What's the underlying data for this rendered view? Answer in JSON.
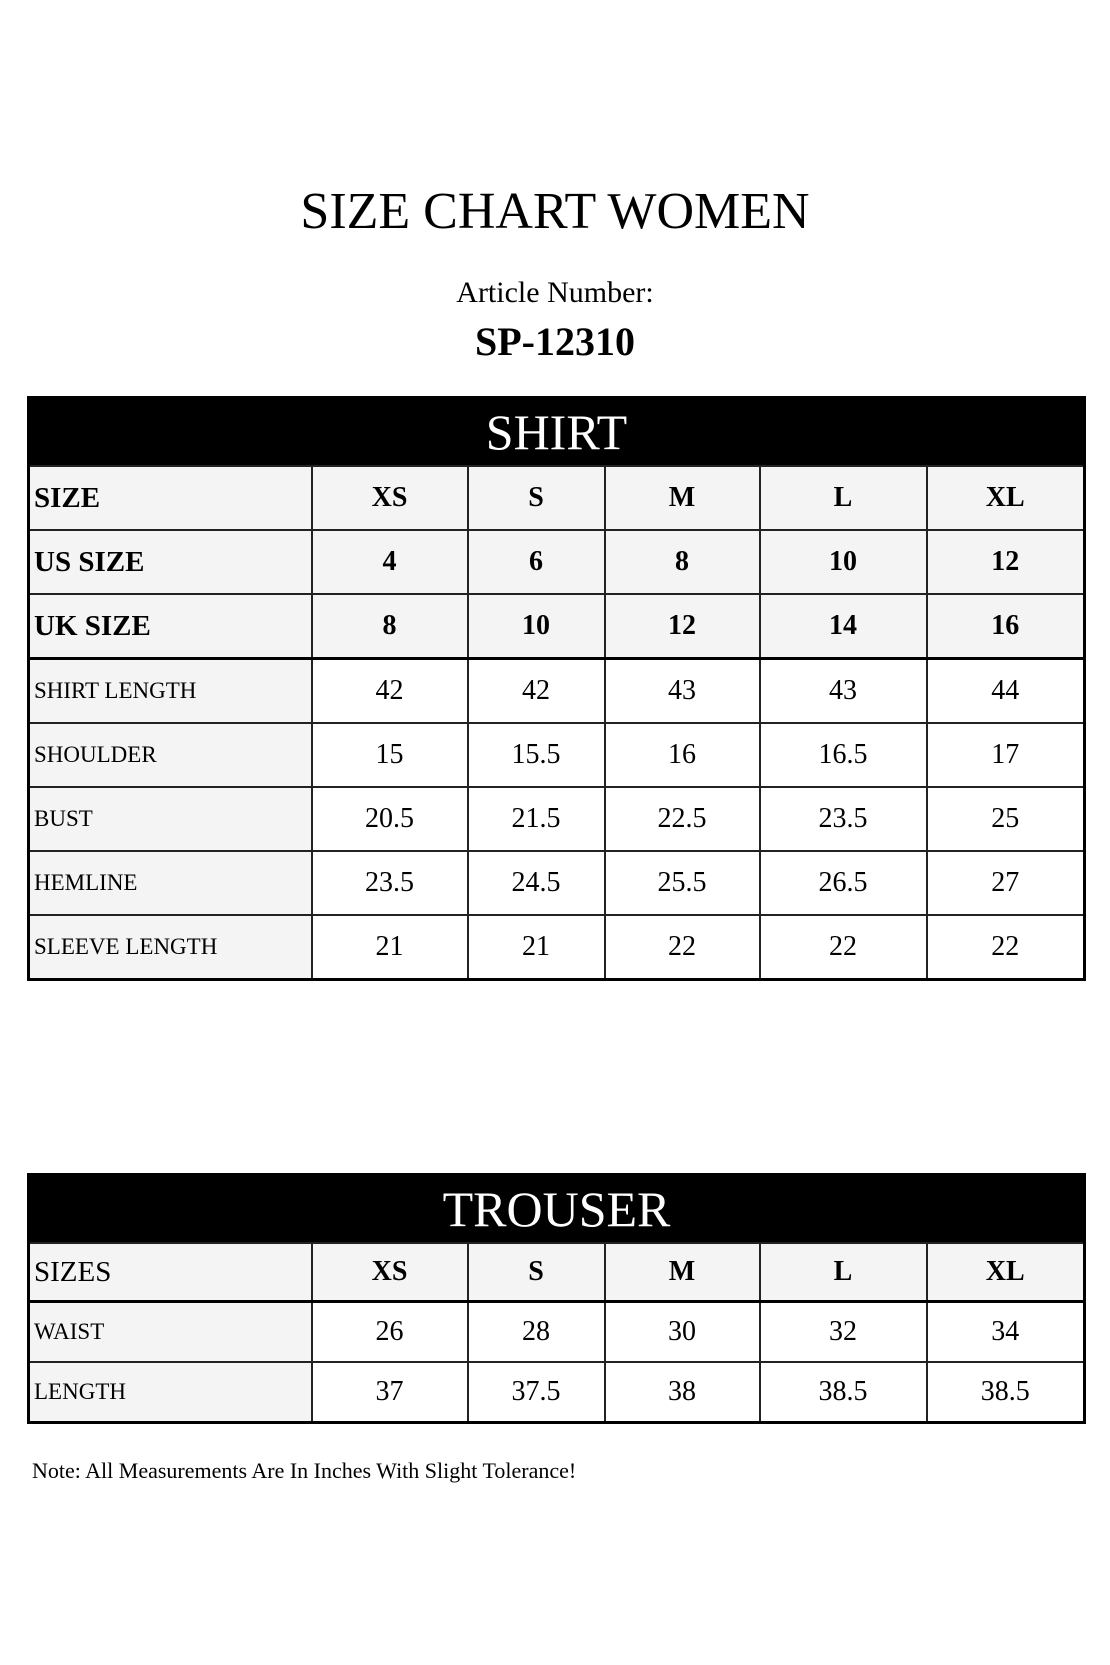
{
  "title": "SIZE CHART WOMEN",
  "article_label": "Article Number:",
  "article_number": "SP-12310",
  "shirt": {
    "heading": "SHIRT",
    "size_rows": [
      {
        "label": "SIZE",
        "values": [
          "XS",
          "S",
          "M",
          "L",
          "XL"
        ]
      },
      {
        "label": "US SIZE",
        "values": [
          "4",
          "6",
          "8",
          "10",
          "12"
        ]
      },
      {
        "label": "UK SIZE",
        "values": [
          "8",
          "10",
          "12",
          "14",
          "16"
        ]
      }
    ],
    "rows": [
      {
        "label": "SHIRT LENGTH",
        "values": [
          "42",
          "42",
          "43",
          "43",
          "44"
        ]
      },
      {
        "label": "SHOULDER",
        "values": [
          "15",
          "15.5",
          "16",
          "16.5",
          "17"
        ]
      },
      {
        "label": "BUST",
        "values": [
          "20.5",
          "21.5",
          "22.5",
          "23.5",
          "25"
        ]
      },
      {
        "label": "HEMLINE",
        "values": [
          "23.5",
          "24.5",
          "25.5",
          "26.5",
          "27"
        ]
      },
      {
        "label": "SLEEVE LENGTH",
        "values": [
          "21",
          "21",
          "22",
          "22",
          "22"
        ]
      }
    ]
  },
  "trouser": {
    "heading": "TROUSER",
    "size_rows": [
      {
        "label": "SIZES",
        "values": [
          "XS",
          "S",
          "M",
          "L",
          "XL"
        ]
      }
    ],
    "rows": [
      {
        "label": "WAIST",
        "values": [
          "26",
          "28",
          "30",
          "32",
          "34"
        ]
      },
      {
        "label": "LENGTH",
        "values": [
          "37",
          "37.5",
          "38",
          "38.5",
          "38.5"
        ]
      }
    ]
  },
  "note": "Note: All Measurements Are In Inches With Slight Tolerance!"
}
